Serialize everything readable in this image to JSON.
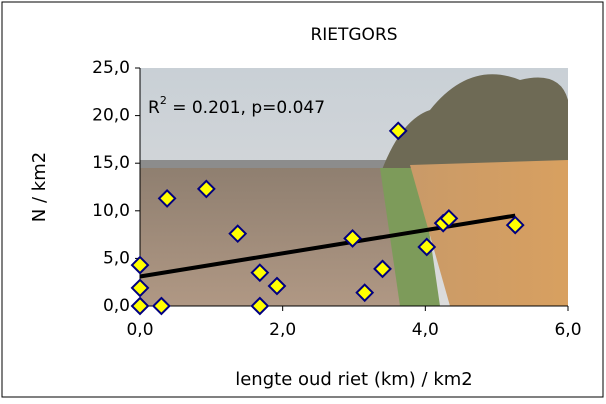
{
  "chart_data": {
    "type": "scatter",
    "title": "RIETGORS",
    "x_label": "lengte oud riet (km) / km2",
    "y_label": "N / km2",
    "annotation": {
      "base": "R",
      "sup": "2",
      "rest": " = 0.201, p=0.047"
    },
    "series": [
      {
        "color": "#ffff00",
        "edge_color": "#000080",
        "x": [
          0,
          0,
          0,
          0.3,
          0.38,
          0.93,
          1.37,
          1.68,
          1.68,
          1.92,
          2.98,
          3.15,
          3.4,
          3.62,
          4.02,
          4.25,
          4.33,
          5.26
        ],
        "values": [
          4.3,
          1.9,
          0,
          0,
          11.3,
          12.3,
          7.6,
          3.5,
          0,
          2.1,
          7.1,
          1.4,
          3.9,
          18.4,
          6.2,
          8.7,
          9.2,
          8.5
        ]
      }
    ],
    "trendline": {
      "color": "#000000",
      "x": [
        0,
        5.26
      ],
      "values": [
        3.1,
        9.5
      ]
    },
    "xlim": [
      0,
      6
    ],
    "ylim": [
      0,
      25
    ],
    "xticks": [
      {
        "value": 0,
        "label": "0,0"
      },
      {
        "value": 2,
        "label": "2,0"
      },
      {
        "value": 4,
        "label": "4,0"
      },
      {
        "value": 6,
        "label": "6,0"
      }
    ],
    "yticks": [
      {
        "value": 0,
        "label": "0,0"
      },
      {
        "value": 5,
        "label": "5,0"
      },
      {
        "value": 10,
        "label": "10,0"
      },
      {
        "value": 15,
        "label": "15,0"
      },
      {
        "value": 20,
        "label": "20,0"
      },
      {
        "value": 25,
        "label": "25,0"
      }
    ]
  }
}
